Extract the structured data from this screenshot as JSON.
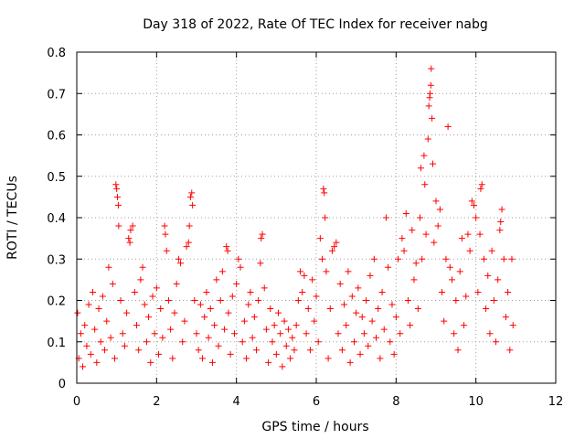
{
  "chart_data": {
    "type": "scatter",
    "title": "Day 318 of 2022, Rate Of TEC Index for receiver nabg",
    "xlabel": "GPS time / hours",
    "ylabel": "ROTI / TECUs",
    "xlim": [
      0,
      12
    ],
    "ylim": [
      0,
      0.8
    ],
    "x_ticks": [
      "0",
      "2",
      "4",
      "6",
      "8",
      "10",
      "12"
    ],
    "y_ticks": [
      "0",
      "0.1",
      "0.2",
      "0.3",
      "0.4",
      "0.5",
      "0.6",
      "0.7",
      "0.8"
    ],
    "grid": true,
    "marker": "+",
    "color": "#ff0000",
    "points": [
      [
        0.02,
        0.17
      ],
      [
        0.05,
        0.06
      ],
      [
        0.1,
        0.12
      ],
      [
        0.15,
        0.04
      ],
      [
        0.2,
        0.14
      ],
      [
        0.25,
        0.09
      ],
      [
        0.3,
        0.19
      ],
      [
        0.35,
        0.07
      ],
      [
        0.4,
        0.22
      ],
      [
        0.45,
        0.13
      ],
      [
        0.5,
        0.05
      ],
      [
        0.55,
        0.18
      ],
      [
        0.6,
        0.1
      ],
      [
        0.65,
        0.21
      ],
      [
        0.7,
        0.08
      ],
      [
        0.75,
        0.15
      ],
      [
        0.8,
        0.28
      ],
      [
        0.85,
        0.11
      ],
      [
        0.9,
        0.24
      ],
      [
        0.95,
        0.06
      ],
      [
        0.98,
        0.48
      ],
      [
        1.0,
        0.47
      ],
      [
        1.02,
        0.45
      ],
      [
        1.04,
        0.43
      ],
      [
        1.05,
        0.38
      ],
      [
        1.1,
        0.2
      ],
      [
        1.15,
        0.12
      ],
      [
        1.2,
        0.09
      ],
      [
        1.25,
        0.17
      ],
      [
        1.3,
        0.35
      ],
      [
        1.33,
        0.34
      ],
      [
        1.35,
        0.37
      ],
      [
        1.4,
        0.38
      ],
      [
        1.45,
        0.22
      ],
      [
        1.5,
        0.14
      ],
      [
        1.55,
        0.08
      ],
      [
        1.6,
        0.25
      ],
      [
        1.65,
        0.28
      ],
      [
        1.7,
        0.19
      ],
      [
        1.75,
        0.1
      ],
      [
        1.8,
        0.16
      ],
      [
        1.85,
        0.05
      ],
      [
        1.9,
        0.21
      ],
      [
        1.95,
        0.12
      ],
      [
        2.0,
        0.23
      ],
      [
        2.05,
        0.07
      ],
      [
        2.1,
        0.18
      ],
      [
        2.15,
        0.11
      ],
      [
        2.2,
        0.38
      ],
      [
        2.22,
        0.36
      ],
      [
        2.25,
        0.32
      ],
      [
        2.3,
        0.2
      ],
      [
        2.35,
        0.13
      ],
      [
        2.4,
        0.06
      ],
      [
        2.45,
        0.17
      ],
      [
        2.5,
        0.24
      ],
      [
        2.55,
        0.3
      ],
      [
        2.6,
        0.29
      ],
      [
        2.65,
        0.1
      ],
      [
        2.7,
        0.15
      ],
      [
        2.75,
        0.33
      ],
      [
        2.8,
        0.34
      ],
      [
        2.82,
        0.38
      ],
      [
        2.85,
        0.45
      ],
      [
        2.88,
        0.46
      ],
      [
        2.9,
        0.43
      ],
      [
        2.95,
        0.2
      ],
      [
        3.0,
        0.12
      ],
      [
        3.05,
        0.08
      ],
      [
        3.1,
        0.19
      ],
      [
        3.15,
        0.06
      ],
      [
        3.2,
        0.16
      ],
      [
        3.25,
        0.22
      ],
      [
        3.3,
        0.11
      ],
      [
        3.35,
        0.18
      ],
      [
        3.4,
        0.05
      ],
      [
        3.45,
        0.14
      ],
      [
        3.5,
        0.25
      ],
      [
        3.55,
        0.09
      ],
      [
        3.6,
        0.2
      ],
      [
        3.65,
        0.27
      ],
      [
        3.7,
        0.13
      ],
      [
        3.75,
        0.33
      ],
      [
        3.78,
        0.32
      ],
      [
        3.8,
        0.17
      ],
      [
        3.85,
        0.07
      ],
      [
        3.9,
        0.21
      ],
      [
        3.95,
        0.12
      ],
      [
        4.0,
        0.24
      ],
      [
        4.05,
        0.3
      ],
      [
        4.1,
        0.28
      ],
      [
        4.15,
        0.1
      ],
      [
        4.2,
        0.15
      ],
      [
        4.25,
        0.06
      ],
      [
        4.3,
        0.19
      ],
      [
        4.35,
        0.22
      ],
      [
        4.4,
        0.11
      ],
      [
        4.45,
        0.16
      ],
      [
        4.5,
        0.08
      ],
      [
        4.55,
        0.2
      ],
      [
        4.6,
        0.29
      ],
      [
        4.62,
        0.35
      ],
      [
        4.65,
        0.36
      ],
      [
        4.7,
        0.23
      ],
      [
        4.75,
        0.13
      ],
      [
        4.8,
        0.05
      ],
      [
        4.85,
        0.18
      ],
      [
        4.9,
        0.1
      ],
      [
        4.95,
        0.14
      ],
      [
        5.0,
        0.07
      ],
      [
        5.05,
        0.17
      ],
      [
        5.1,
        0.12
      ],
      [
        5.15,
        0.04
      ],
      [
        5.2,
        0.15
      ],
      [
        5.25,
        0.09
      ],
      [
        5.3,
        0.13
      ],
      [
        5.35,
        0.06
      ],
      [
        5.4,
        0.11
      ],
      [
        5.45,
        0.08
      ],
      [
        5.5,
        0.14
      ],
      [
        5.55,
        0.2
      ],
      [
        5.6,
        0.27
      ],
      [
        5.65,
        0.22
      ],
      [
        5.7,
        0.26
      ],
      [
        5.75,
        0.12
      ],
      [
        5.8,
        0.18
      ],
      [
        5.85,
        0.08
      ],
      [
        5.9,
        0.25
      ],
      [
        5.95,
        0.15
      ],
      [
        6.0,
        0.21
      ],
      [
        6.05,
        0.1
      ],
      [
        6.1,
        0.35
      ],
      [
        6.15,
        0.3
      ],
      [
        6.18,
        0.47
      ],
      [
        6.2,
        0.46
      ],
      [
        6.22,
        0.4
      ],
      [
        6.25,
        0.27
      ],
      [
        6.3,
        0.06
      ],
      [
        6.35,
        0.18
      ],
      [
        6.4,
        0.32
      ],
      [
        6.45,
        0.33
      ],
      [
        6.5,
        0.34
      ],
      [
        6.55,
        0.12
      ],
      [
        6.6,
        0.24
      ],
      [
        6.65,
        0.08
      ],
      [
        6.7,
        0.19
      ],
      [
        6.75,
        0.14
      ],
      [
        6.8,
        0.27
      ],
      [
        6.85,
        0.05
      ],
      [
        6.9,
        0.21
      ],
      [
        6.95,
        0.1
      ],
      [
        7.0,
        0.17
      ],
      [
        7.05,
        0.23
      ],
      [
        7.1,
        0.07
      ],
      [
        7.15,
        0.16
      ],
      [
        7.2,
        0.12
      ],
      [
        7.25,
        0.2
      ],
      [
        7.3,
        0.09
      ],
      [
        7.35,
        0.26
      ],
      [
        7.4,
        0.15
      ],
      [
        7.45,
        0.3
      ],
      [
        7.5,
        0.11
      ],
      [
        7.55,
        0.18
      ],
      [
        7.6,
        0.06
      ],
      [
        7.65,
        0.22
      ],
      [
        7.7,
        0.13
      ],
      [
        7.75,
        0.4
      ],
      [
        7.8,
        0.28
      ],
      [
        7.85,
        0.1
      ],
      [
        7.9,
        0.19
      ],
      [
        7.95,
        0.07
      ],
      [
        8.0,
        0.16
      ],
      [
        8.05,
        0.3
      ],
      [
        8.1,
        0.12
      ],
      [
        8.15,
        0.35
      ],
      [
        8.2,
        0.32
      ],
      [
        8.25,
        0.41
      ],
      [
        8.3,
        0.2
      ],
      [
        8.35,
        0.14
      ],
      [
        8.4,
        0.37
      ],
      [
        8.45,
        0.25
      ],
      [
        8.5,
        0.29
      ],
      [
        8.55,
        0.18
      ],
      [
        8.6,
        0.4
      ],
      [
        8.62,
        0.52
      ],
      [
        8.65,
        0.3
      ],
      [
        8.7,
        0.55
      ],
      [
        8.72,
        0.48
      ],
      [
        8.75,
        0.36
      ],
      [
        8.8,
        0.59
      ],
      [
        8.82,
        0.67
      ],
      [
        8.84,
        0.69
      ],
      [
        8.85,
        0.7
      ],
      [
        8.87,
        0.72
      ],
      [
        8.88,
        0.76
      ],
      [
        8.9,
        0.64
      ],
      [
        8.92,
        0.53
      ],
      [
        8.95,
        0.34
      ],
      [
        9.0,
        0.44
      ],
      [
        9.05,
        0.38
      ],
      [
        9.1,
        0.42
      ],
      [
        9.15,
        0.22
      ],
      [
        9.2,
        0.15
      ],
      [
        9.25,
        0.3
      ],
      [
        9.3,
        0.62
      ],
      [
        9.35,
        0.28
      ],
      [
        9.4,
        0.25
      ],
      [
        9.45,
        0.12
      ],
      [
        9.5,
        0.2
      ],
      [
        9.55,
        0.08
      ],
      [
        9.6,
        0.27
      ],
      [
        9.65,
        0.35
      ],
      [
        9.7,
        0.14
      ],
      [
        9.75,
        0.21
      ],
      [
        9.8,
        0.36
      ],
      [
        9.85,
        0.32
      ],
      [
        9.9,
        0.44
      ],
      [
        9.95,
        0.43
      ],
      [
        10.0,
        0.4
      ],
      [
        10.05,
        0.22
      ],
      [
        10.1,
        0.36
      ],
      [
        10.12,
        0.47
      ],
      [
        10.15,
        0.48
      ],
      [
        10.2,
        0.3
      ],
      [
        10.25,
        0.18
      ],
      [
        10.3,
        0.26
      ],
      [
        10.35,
        0.12
      ],
      [
        10.4,
        0.32
      ],
      [
        10.45,
        0.2
      ],
      [
        10.5,
        0.1
      ],
      [
        10.55,
        0.25
      ],
      [
        10.6,
        0.37
      ],
      [
        10.62,
        0.39
      ],
      [
        10.65,
        0.42
      ],
      [
        10.7,
        0.3
      ],
      [
        10.75,
        0.16
      ],
      [
        10.8,
        0.22
      ],
      [
        10.85,
        0.08
      ],
      [
        10.9,
        0.3
      ],
      [
        10.93,
        0.14
      ]
    ]
  }
}
